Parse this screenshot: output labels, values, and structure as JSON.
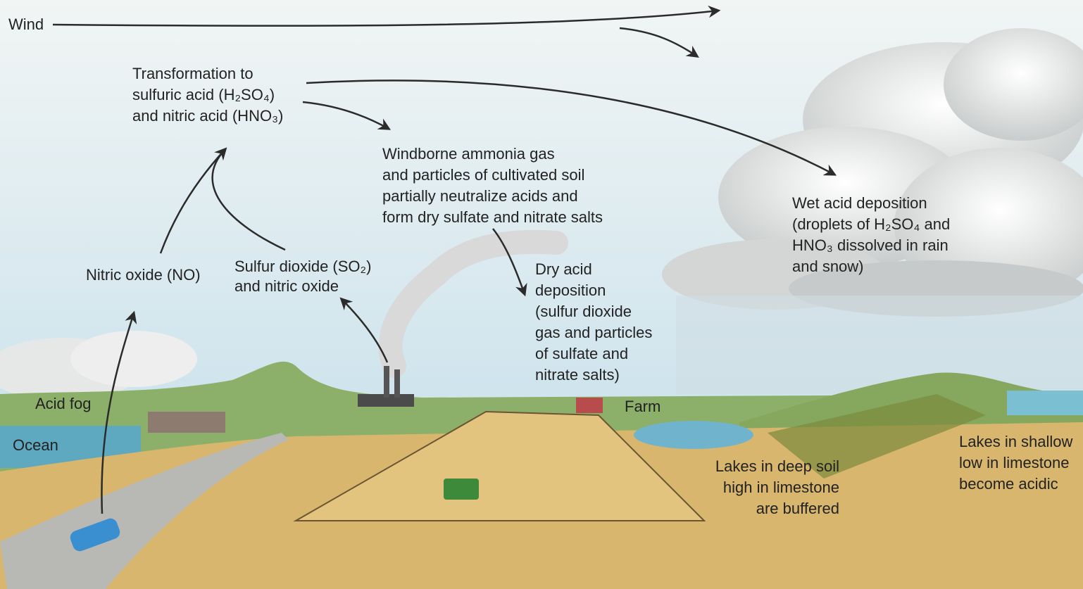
{
  "labels": {
    "wind": "Wind",
    "transformation": [
      "Transformation to",
      "sulfuric acid (H₂SO₄)",
      "and nitric acid (HNO₃)"
    ],
    "windborne": [
      "Windborne ammonia gas",
      "and particles of cultivated soil",
      "partially neutralize acids and",
      "form dry sulfate and nitrate salts"
    ],
    "wet_deposition": [
      "Wet acid deposition",
      "(droplets of H₂SO₄ and",
      "HNO₃ dissolved in rain",
      "and snow)"
    ],
    "nitric_oxide": "Nitric oxide (NO)",
    "sulfur_dioxide": [
      "Sulfur dioxide (SO₂)",
      "and nitric oxide"
    ],
    "dry_deposition": [
      "Dry acid",
      "deposition",
      "(sulfur dioxide",
      "gas and particles",
      "of sulfate and",
      "nitrate salts)"
    ],
    "acid_fog": "Acid fog",
    "ocean": "Ocean",
    "farm": "Farm",
    "lakes_deep": [
      "Lakes in deep soil",
      "high in limestone",
      "are buffered"
    ],
    "lakes_shallow": [
      "Lakes in shallow",
      "low in limestone",
      "become acidic"
    ]
  }
}
